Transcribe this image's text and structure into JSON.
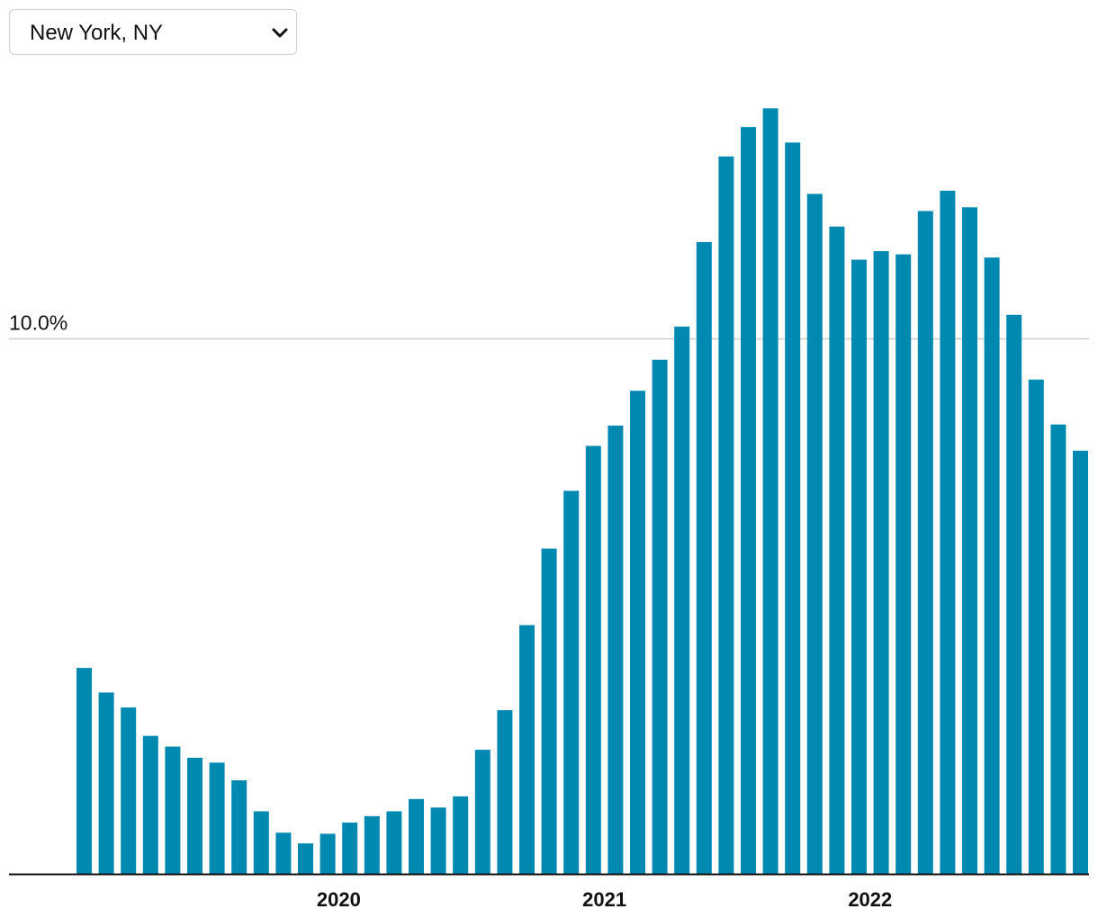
{
  "location_select": {
    "value": "New York, NY"
  },
  "colors": {
    "bar": "#0089b0",
    "gridline": "#cccccc",
    "axis": "#111111"
  },
  "chart_data": {
    "type": "bar",
    "ylim": [
      0,
      14.45
    ],
    "y_ticks": [
      {
        "value": 10,
        "label": "10.0%"
      }
    ],
    "x_tick_labels": [
      {
        "label": "2020",
        "index": 11.5
      },
      {
        "label": "2021",
        "index": 23.5
      },
      {
        "label": "2022",
        "index": 35.5
      }
    ],
    "grid": true,
    "legend": "none",
    "values": [
      3.85,
      3.39,
      3.11,
      2.58,
      2.38,
      2.17,
      2.08,
      1.75,
      1.17,
      0.77,
      0.57,
      0.75,
      0.96,
      1.08,
      1.17,
      1.4,
      1.24,
      1.45,
      2.32,
      3.06,
      4.65,
      6.08,
      7.16,
      8.0,
      8.38,
      9.03,
      9.61,
      10.23,
      11.81,
      13.41,
      13.96,
      14.31,
      13.67,
      12.71,
      12.1,
      11.48,
      11.64,
      11.58,
      12.39,
      12.77,
      12.46,
      11.52,
      10.45,
      9.24,
      8.4,
      7.91
    ]
  }
}
